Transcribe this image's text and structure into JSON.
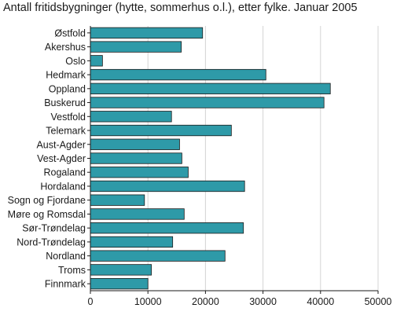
{
  "chart_data": {
    "type": "bar",
    "orientation": "horizontal",
    "title": "Antall fritidsbygninger (hytte, sommerhus o.l.), etter fylke. Januar 2005",
    "xlabel": "",
    "ylabel": "",
    "categories": [
      "Østfold",
      "Akershus",
      "Oslo",
      "Hedmark",
      "Oppland",
      "Buskerud",
      "Vestfold",
      "Telemark",
      "Aust-Agder",
      "Vest-Agder",
      "Rogaland",
      "Hordaland",
      "Sogn og Fjordane",
      "Møre og Romsdal",
      "Sør-Trøndelag",
      "Nord-Trøndelag",
      "Nordland",
      "Troms",
      "Finnmark"
    ],
    "values": [
      19500,
      15800,
      2100,
      30500,
      41700,
      40600,
      14100,
      24500,
      15500,
      15900,
      17000,
      26800,
      9400,
      16300,
      26600,
      14300,
      23400,
      10600,
      10000
    ],
    "xlim": [
      0,
      50000
    ],
    "xticks": [
      "0",
      "10000",
      "20000",
      "30000",
      "40000",
      "50000"
    ],
    "xgrid": true,
    "legend": "none",
    "colors": {
      "bar": "#2e9aa8",
      "bar_stroke": "#1a1a1a",
      "grid": "#d4d4d4",
      "axis": "#1a1a1a"
    }
  }
}
